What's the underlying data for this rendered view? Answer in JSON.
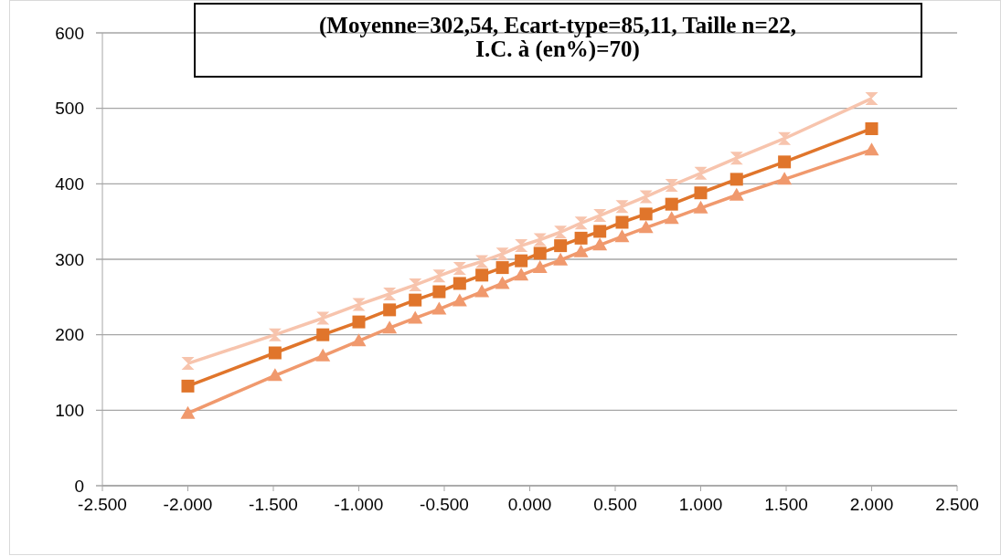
{
  "chart_data": {
    "type": "line",
    "title": "(Moyenne=302,54, Ecart-type=85,11, Taille n=22,\nI.C. à (en%)=70)",
    "xlim": [
      -2.5,
      2.5
    ],
    "xticks": [
      {
        "value": -2.5,
        "label": "-2.500"
      },
      {
        "value": -2,
        "label": "-2.000"
      },
      {
        "value": -1.5,
        "label": "-1.500"
      },
      {
        "value": -1,
        "label": "-1.000"
      },
      {
        "value": -0.5,
        "label": "-0.500"
      },
      {
        "value": 0,
        "label": "0.000"
      },
      {
        "value": 0.5,
        "label": "0.500"
      },
      {
        "value": 1,
        "label": "1.000"
      },
      {
        "value": 1.5,
        "label": "1.500"
      },
      {
        "value": 2,
        "label": "2.000"
      },
      {
        "value": 2.5,
        "label": "2.500"
      }
    ],
    "ylim": [
      0,
      600
    ],
    "yticks": [
      0,
      100,
      200,
      300,
      400,
      500,
      600
    ],
    "grid": "y",
    "x": [
      -2,
      -1.49,
      -1.21,
      -1.0,
      -0.82,
      -0.67,
      -0.53,
      -0.41,
      -0.28,
      -0.16,
      -0.05,
      0.06,
      0.18,
      0.3,
      0.41,
      0.54,
      0.68,
      0.83,
      1.0,
      1.21,
      1.49,
      2
    ],
    "series": [
      {
        "color": "#f7c4ad",
        "marker": "cross",
        "values": [
          162,
          200,
          222,
          240,
          254,
          266,
          278,
          288,
          297,
          307,
          318,
          326,
          336,
          348,
          358,
          370,
          383,
          398,
          414,
          434,
          460,
          513
        ]
      },
      {
        "color": "#e0752b",
        "marker": "square",
        "values": [
          132,
          176,
          200,
          217,
          233,
          246,
          257,
          268,
          279,
          289,
          298,
          308,
          318,
          328,
          337,
          349,
          360,
          373,
          388,
          406,
          429,
          473
        ]
      },
      {
        "color": "#f0996d",
        "marker": "triangle",
        "values": [
          96,
          146,
          172,
          192,
          209,
          222,
          234,
          245,
          257,
          268,
          279,
          289,
          299,
          310,
          319,
          330,
          342,
          354,
          368,
          385,
          406,
          445
        ]
      }
    ]
  }
}
